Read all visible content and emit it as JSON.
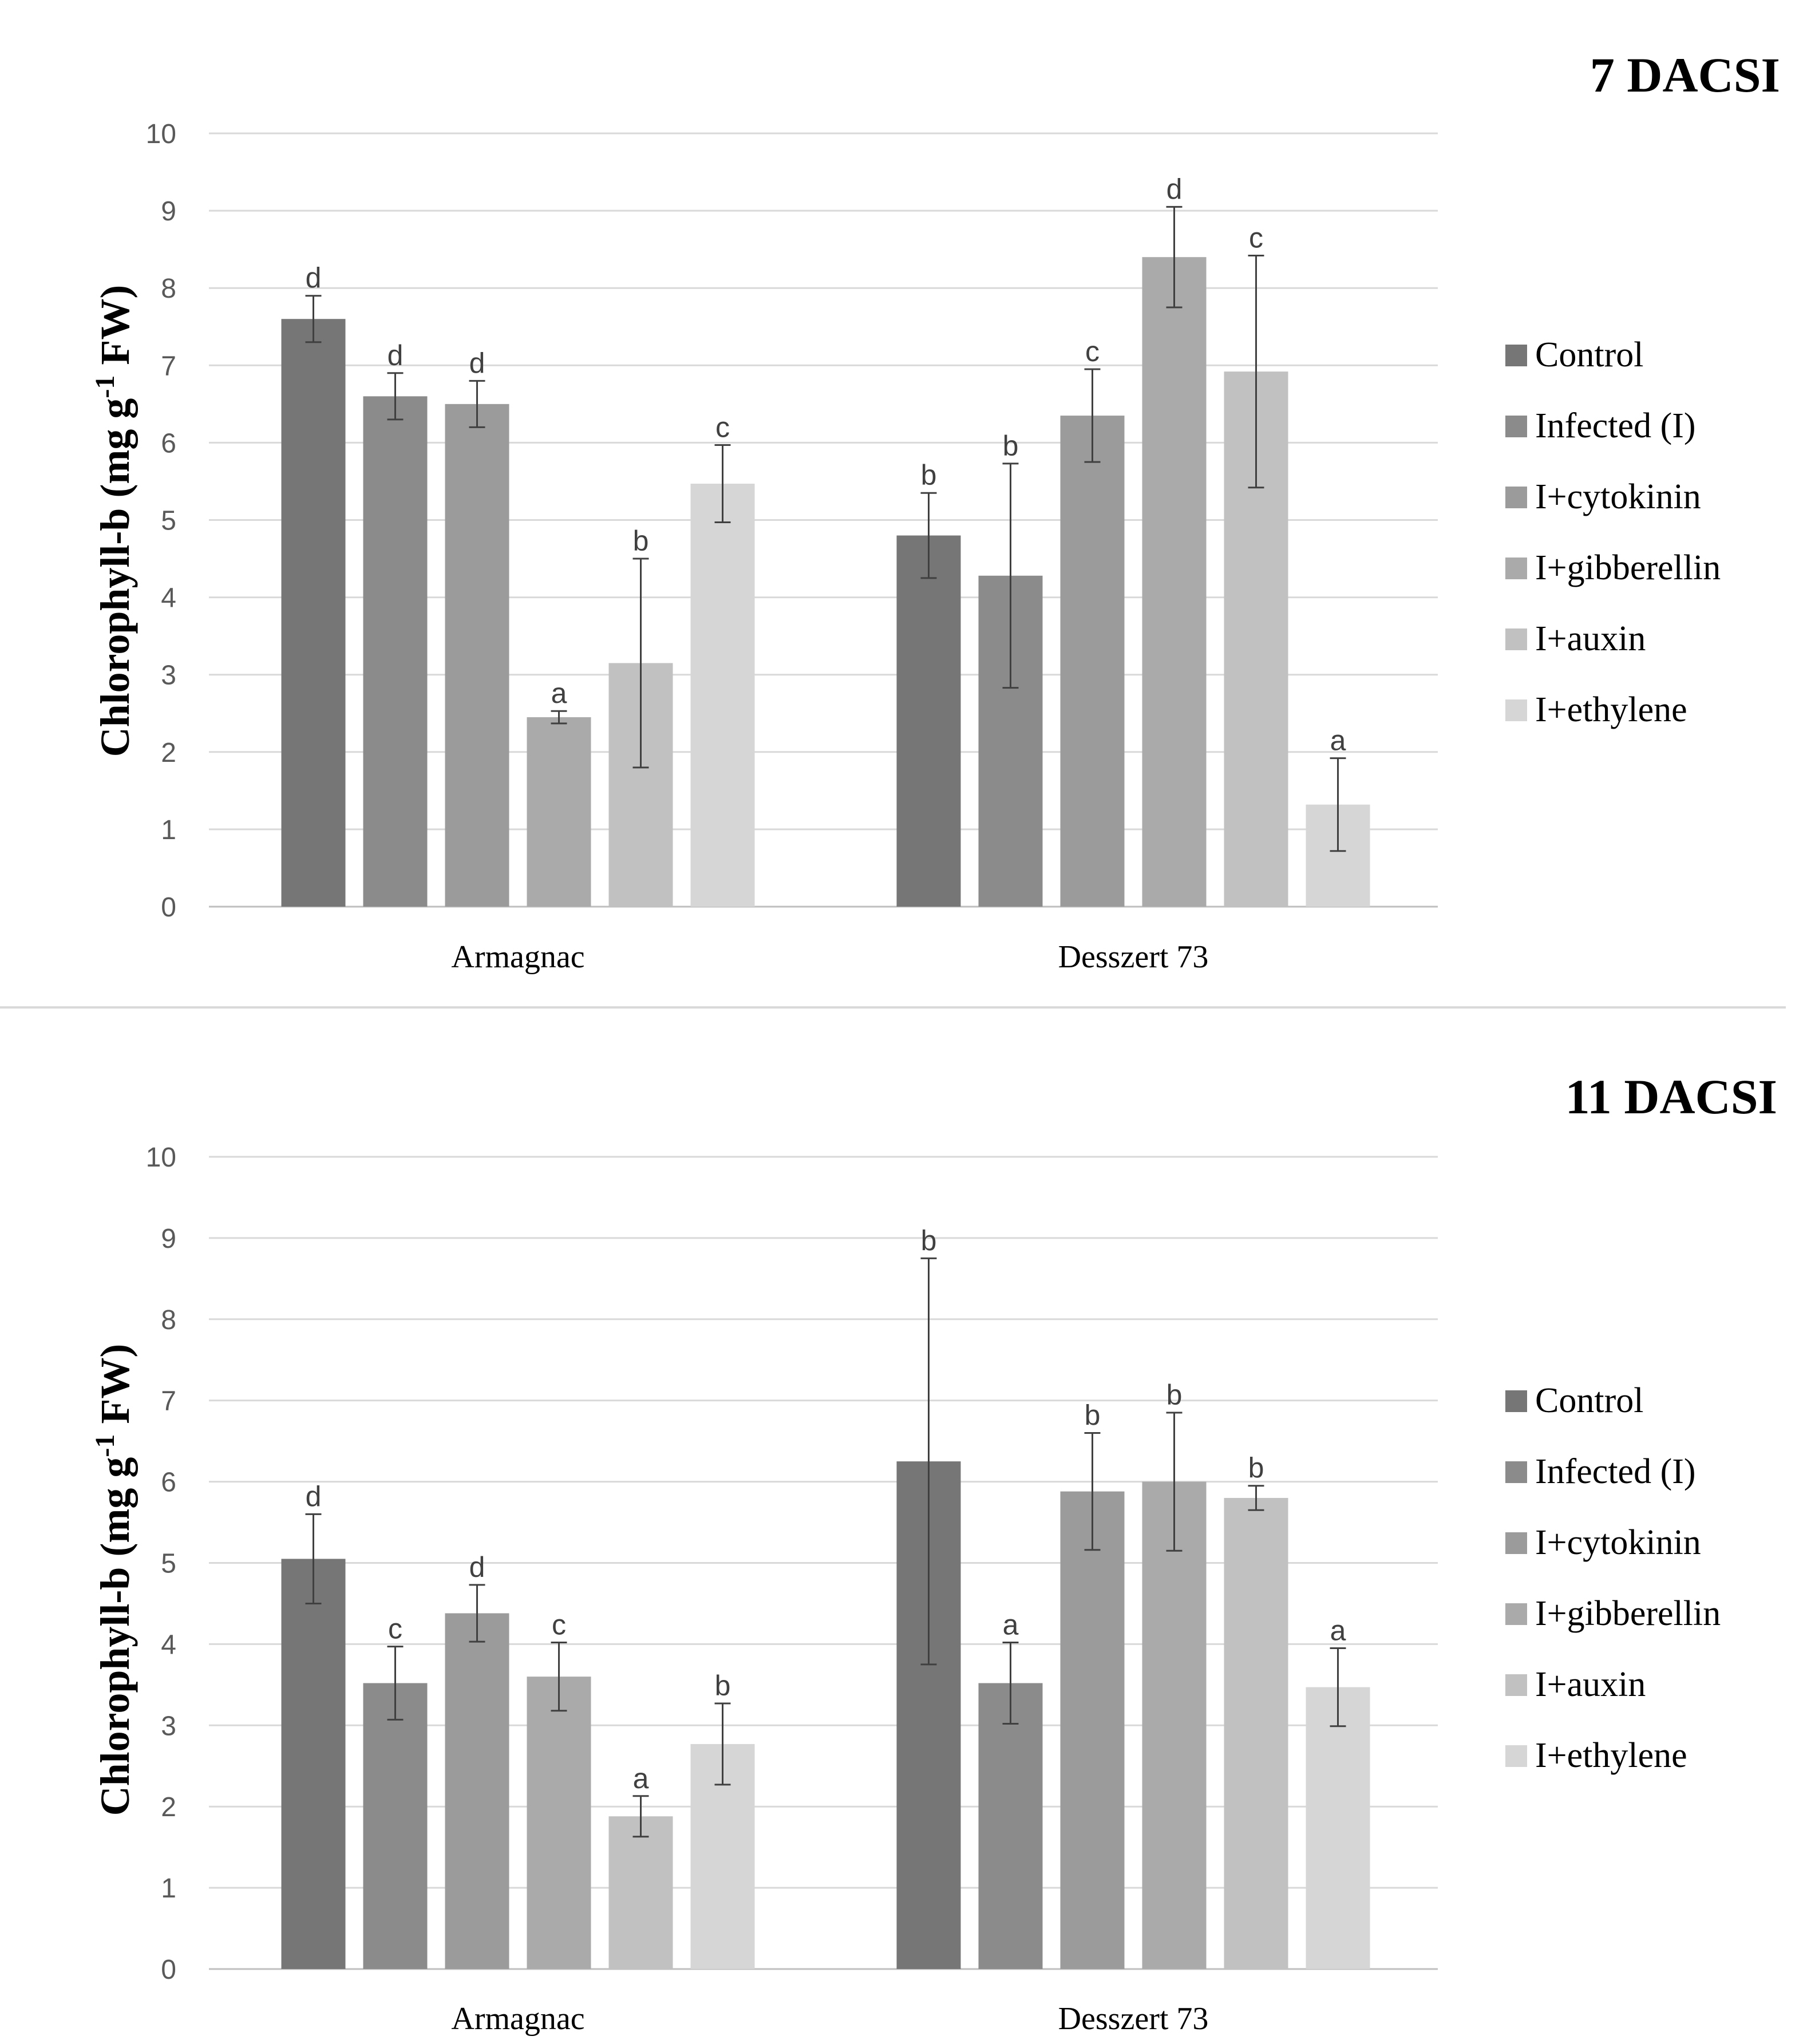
{
  "chart_data": [
    {
      "type": "bar",
      "title": "7 DACSI",
      "ylabel": "Chlorophyll-b (mg g-1 FW)",
      "ylabel_main": "Chlorophyll-b (mg g",
      "ylabel_sup": "-1",
      "ylabel_tail": " FW)",
      "ylim": [
        0,
        10
      ],
      "yticks": [
        "0",
        "1",
        "2",
        "3",
        "4",
        "5",
        "6",
        "7",
        "8",
        "9",
        "10"
      ],
      "categories": [
        "Armagnac",
        "Desszert 73"
      ],
      "series": [
        {
          "name": "Control",
          "color": "#767676",
          "values": [
            7.6,
            4.8
          ],
          "errors": [
            0.3,
            0.55
          ],
          "labels": [
            "d",
            "b"
          ]
        },
        {
          "name": "Infected (I)",
          "color": "#8b8b8b",
          "values": [
            6.6,
            4.28
          ],
          "errors": [
            0.3,
            1.45
          ],
          "labels": [
            "d",
            "b"
          ]
        },
        {
          "name": "I+cytokinin",
          "color": "#9b9b9b",
          "values": [
            6.5,
            6.35
          ],
          "errors": [
            0.3,
            0.6
          ],
          "labels": [
            "d",
            "c"
          ]
        },
        {
          "name": "I+gibberellin",
          "color": "#aaaaaa",
          "values": [
            2.45,
            8.4
          ],
          "errors": [
            0.08,
            0.65
          ],
          "labels": [
            "a",
            "d"
          ]
        },
        {
          "name": "I+auxin",
          "color": "#c1c1c1",
          "values": [
            3.15,
            6.92
          ],
          "errors": [
            1.35,
            1.5
          ],
          "labels": [
            "b",
            "c"
          ]
        },
        {
          "name": "I+ethylene",
          "color": "#d6d6d6",
          "values": [
            5.47,
            1.32
          ],
          "errors": [
            0.5,
            0.6
          ],
          "labels": [
            "c",
            "a"
          ]
        }
      ]
    },
    {
      "type": "bar",
      "title": "11 DACSI",
      "ylabel": "Chlorophyll-b (mg g-1 FW)",
      "ylabel_main": "Chlorophyll-b (mg g",
      "ylabel_sup": "-1",
      "ylabel_tail": " FW)",
      "ylim": [
        0,
        10
      ],
      "yticks": [
        "0",
        "1",
        "2",
        "3",
        "4",
        "5",
        "6",
        "7",
        "8",
        "9",
        "10"
      ],
      "categories": [
        "Armagnac",
        "Desszert 73"
      ],
      "series": [
        {
          "name": "Control",
          "color": "#767676",
          "values": [
            5.05,
            6.25
          ],
          "errors": [
            0.55,
            2.5
          ],
          "labels": [
            "d",
            "b"
          ]
        },
        {
          "name": "Infected (I)",
          "color": "#8b8b8b",
          "values": [
            3.52,
            3.52
          ],
          "errors": [
            0.45,
            0.5
          ],
          "labels": [
            "c",
            "a"
          ]
        },
        {
          "name": "I+cytokinin",
          "color": "#9b9b9b",
          "values": [
            4.38,
            5.88
          ],
          "errors": [
            0.35,
            0.72
          ],
          "labels": [
            "d",
            "b"
          ]
        },
        {
          "name": "I+gibberellin",
          "color": "#aaaaaa",
          "values": [
            3.6,
            6.0
          ],
          "errors": [
            0.42,
            0.85
          ],
          "labels": [
            "c",
            "b"
          ]
        },
        {
          "name": "I+auxin",
          "color": "#c1c1c1",
          "values": [
            1.88,
            5.8
          ],
          "errors": [
            0.25,
            0.15
          ],
          "labels": [
            "a",
            "b"
          ]
        },
        {
          "name": "I+ethylene",
          "color": "#d6d6d6",
          "values": [
            2.77,
            3.47
          ],
          "errors": [
            0.5,
            0.48
          ],
          "labels": [
            "b",
            "a"
          ]
        }
      ]
    }
  ],
  "colors": {
    "grid": "#d9d9d9",
    "axis": "#bfbfbf",
    "error_bar": "#404040",
    "divider": "#d9d9d9"
  }
}
